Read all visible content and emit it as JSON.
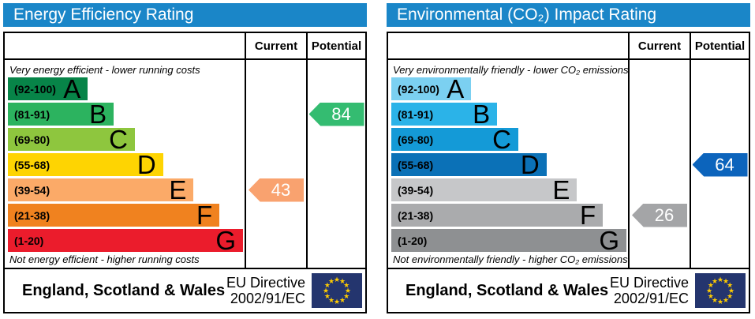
{
  "labels": {
    "current": "Current",
    "potential": "Potential"
  },
  "footer": {
    "region": "England, Scotland & Wales",
    "directive_line1": "EU Directive",
    "directive_line2": "2002/91/EC"
  },
  "eu_flag": {
    "background": "#24356e",
    "star_color": "#ffcc00",
    "star_glyph": "★",
    "star_count": 12
  },
  "chart_data": [
    {
      "type": "bar",
      "title": "Energy Efficiency Rating",
      "header_color": "#1a86c8",
      "top_note": "Very energy efficient - lower running costs",
      "bottom_note": "Not energy efficient - higher running costs",
      "categories": [
        "A",
        "B",
        "C",
        "D",
        "E",
        "F",
        "G"
      ],
      "ranges": [
        "(92-100)",
        "(81-91)",
        "(69-80)",
        "(55-68)",
        "(39-54)",
        "(21-38)",
        "(1-20)"
      ],
      "bar_widths_pct": [
        34,
        45,
        54,
        66,
        79,
        90,
        100
      ],
      "bar_colors": [
        "#078448",
        "#2cb35f",
        "#8ec63e",
        "#fed402",
        "#fbaa68",
        "#f0821f",
        "#eb1c2c"
      ],
      "current": {
        "value": 43,
        "band": "E",
        "color": "#f9a26f"
      },
      "potential": {
        "value": 84,
        "band": "B",
        "color": "#34bc71"
      }
    },
    {
      "type": "bar",
      "title": "Environmental (CO₂) Impact Rating",
      "header_color": "#1a86c8",
      "top_note": "Very environmentally friendly - lower CO₂ emissions",
      "bottom_note": "Not environmentally friendly - higher CO₂ emissions",
      "categories": [
        "A",
        "B",
        "C",
        "D",
        "E",
        "F",
        "G"
      ],
      "ranges": [
        "(92-100)",
        "(81-91)",
        "(69-80)",
        "(55-68)",
        "(39-54)",
        "(21-38)",
        "(1-20)"
      ],
      "bar_widths_pct": [
        34,
        45,
        54,
        66,
        79,
        90,
        100
      ],
      "bar_colors": [
        "#7bd0f1",
        "#2bb3e8",
        "#149ad7",
        "#0b71b7",
        "#c6c7c9",
        "#aaabad",
        "#8e9092"
      ],
      "current": {
        "value": 26,
        "band": "F",
        "color": "#a4a5a7"
      },
      "potential": {
        "value": 64,
        "band": "D",
        "color": "#0c64bc"
      }
    }
  ]
}
